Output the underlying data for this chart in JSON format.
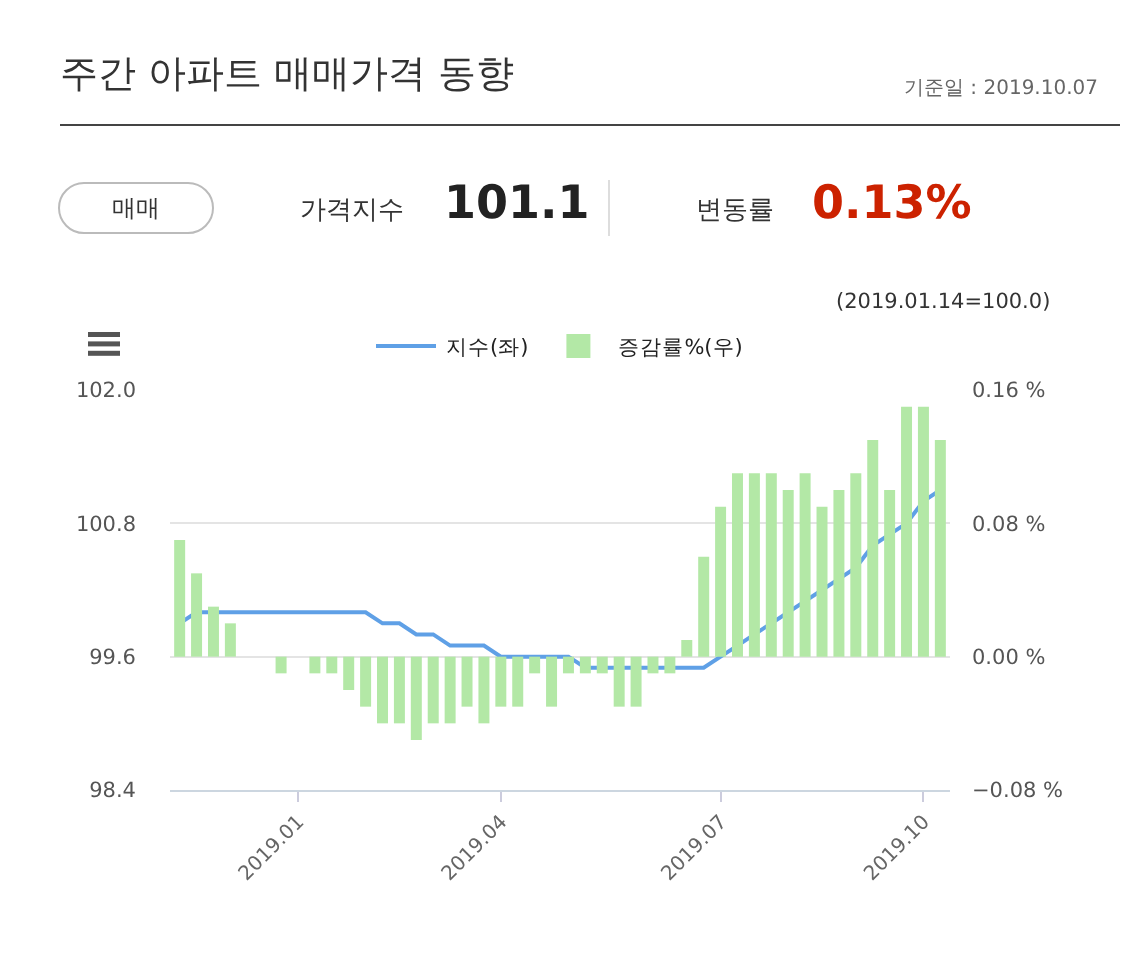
{
  "chart_data": {
    "type": "bar",
    "title": "주간 아파트 매매가격 동향",
    "annotations": [
      "기준일 : 2019.10.07",
      "매매",
      "가격지수",
      "101.1",
      "변동률",
      "0.13%",
      "(2019.01.14=100.0)"
    ],
    "x": [
      "2018-11-26",
      "2018-12-03",
      "2018-12-10",
      "2018-12-17",
      "2018-12-24",
      "2018-12-31",
      "2019-01-07",
      "2019-01-14",
      "2019-01-21",
      "2019-01-28",
      "2019-02-04",
      "2019-02-11",
      "2019-02-18",
      "2019-02-25",
      "2019-03-04",
      "2019-03-11",
      "2019-03-18",
      "2019-03-25",
      "2019-04-01",
      "2019-04-08",
      "2019-04-15",
      "2019-04-22",
      "2019-04-29",
      "2019-05-06",
      "2019-05-13",
      "2019-05-20",
      "2019-05-27",
      "2019-06-03",
      "2019-06-10",
      "2019-06-17",
      "2019-06-24",
      "2019-07-01",
      "2019-07-08",
      "2019-07-15",
      "2019-07-22",
      "2019-07-29",
      "2019-08-05",
      "2019-08-12",
      "2019-08-19",
      "2019-08-26",
      "2019-09-02",
      "2019-09-09",
      "2019-09-16",
      "2019-09-23",
      "2019-09-30",
      "2019-10-07"
    ],
    "series": [
      {
        "name": "지수(좌)",
        "type": "line",
        "color": "#5fa0e6",
        "values": [
          99.9,
          100.0,
          100.0,
          100.0,
          100.0,
          100.0,
          100.0,
          100.0,
          100.0,
          100.0,
          100.0,
          100.0,
          99.9,
          99.9,
          99.8,
          99.8,
          99.7,
          99.7,
          99.7,
          99.6,
          99.6,
          99.6,
          99.6,
          99.6,
          99.5,
          99.5,
          99.5,
          99.5,
          99.5,
          99.5,
          99.5,
          99.5,
          99.6,
          99.7,
          99.8,
          99.9,
          100.0,
          100.1,
          100.2,
          100.3,
          100.4,
          100.6,
          100.7,
          100.8,
          101.0,
          101.1
        ]
      },
      {
        "name": "증감률%(우)",
        "axis": "y2",
        "color": "#b3e8a6",
        "values": [
          0.07,
          0.05,
          0.03,
          0.02,
          0.0,
          0.0,
          -0.01,
          0.0,
          -0.01,
          -0.01,
          -0.02,
          -0.03,
          -0.04,
          -0.04,
          -0.05,
          -0.04,
          -0.04,
          -0.03,
          -0.04,
          -0.03,
          -0.03,
          -0.01,
          -0.03,
          -0.01,
          -0.01,
          -0.01,
          -0.03,
          -0.03,
          -0.01,
          -0.01,
          0.01,
          0.06,
          0.09,
          0.11,
          0.11,
          0.11,
          0.1,
          0.11,
          0.09,
          0.1,
          0.11,
          0.13,
          0.1,
          0.15,
          0.15,
          0.13
        ]
      }
    ],
    "xlim": [
      "2018-11-22",
      "2019-10-11"
    ],
    "xticks": [
      {
        "value": "2019-01-14",
        "label": "2019.01"
      },
      {
        "value": "2019-04-08",
        "label": "2019.04"
      },
      {
        "value": "2019-07-08",
        "label": "2019.07"
      },
      {
        "value": "2019-09-30",
        "label": "2019.10"
      }
    ],
    "ylim": [
      98.4,
      102.0
    ],
    "yticks": [
      {
        "value": 98.4,
        "label": "98.4"
      },
      {
        "value": 99.6,
        "label": "99.6"
      },
      {
        "value": 100.8,
        "label": "100.8"
      },
      {
        "value": 102.0,
        "label": "102.0"
      }
    ],
    "y2lim": [
      -0.08,
      0.16
    ],
    "y2ticks": [
      {
        "value": -0.08,
        "label": "−0.08 %"
      },
      {
        "value": 0,
        "label": "0.00 %"
      },
      {
        "value": 0.08,
        "label": "0.08 %"
      },
      {
        "value": 0.16,
        "label": "0.16 %"
      }
    ],
    "grid": "y",
    "legend": "top"
  }
}
